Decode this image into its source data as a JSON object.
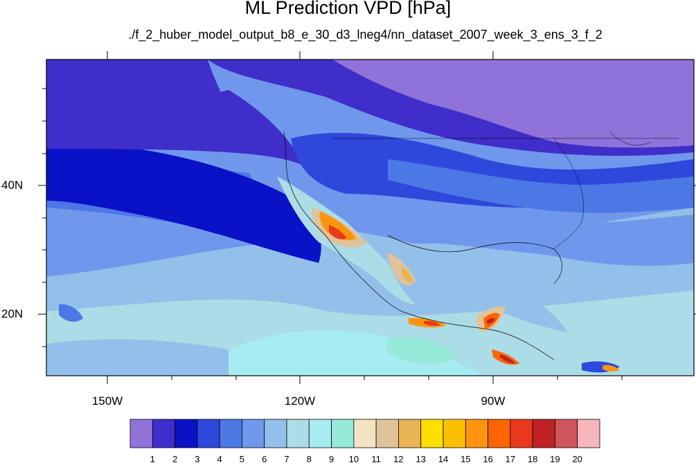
{
  "title": "ML Prediction VPD [hPa]",
  "subtitle": "./f_2_huber_model_output_b8_e_30_d3_lneg4/nn_dataset_2007_week_3_ens_3_f_2",
  "lat_labels": [
    {
      "label": "40N",
      "value": 40
    },
    {
      "label": "20N",
      "value": 20
    }
  ],
  "lon_labels": [
    {
      "label": "150W",
      "value": -150
    },
    {
      "label": "120W",
      "value": -120
    },
    {
      "label": "90W",
      "value": -90
    }
  ],
  "colorbar": {
    "labels": [
      "1",
      "2",
      "3",
      "4",
      "5",
      "6",
      "7",
      "8",
      "9",
      "10",
      "11",
      "12",
      "13",
      "14",
      "15",
      "16",
      "17",
      "18",
      "19",
      "20"
    ],
    "colors": [
      "#8f73da",
      "#3f2ec9",
      "#0a12c7",
      "#2e48dc",
      "#4c78e6",
      "#6f98ec",
      "#93c0ea",
      "#acdde6",
      "#a6ecf2",
      "#96ead8",
      "#f2e4c2",
      "#e0c39a",
      "#e8b454",
      "#fde000",
      "#fcc000",
      "#fd9410",
      "#fe6400",
      "#e9381c",
      "#bf2222",
      "#d0555c",
      "#f7b6bb"
    ]
  },
  "map": {
    "region": "North America / Eastern Pacific",
    "extent": {
      "lon": [
        -160,
        -60
      ],
      "lat": [
        11,
        60
      ]
    },
    "background_color": "#6f98ec"
  }
}
